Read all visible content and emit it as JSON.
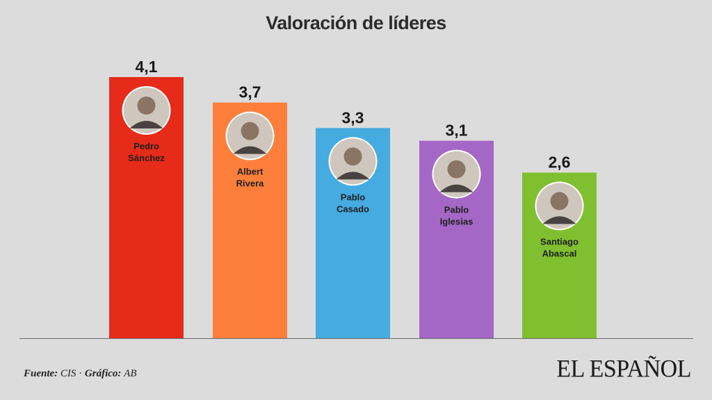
{
  "chart_data": {
    "type": "bar",
    "title": "Valoración de líderes",
    "categories": [
      "Pedro Sánchez",
      "Albert Rivera",
      "Pablo Casado",
      "Pablo Iglesias",
      "Santiago Abascal"
    ],
    "category_lines": [
      [
        "Pedro",
        "Sánchez"
      ],
      [
        "Albert",
        "Rivera"
      ],
      [
        "Pablo",
        "Casado"
      ],
      [
        "Pablo",
        "Iglesias"
      ],
      [
        "Santiago",
        "Abascal"
      ]
    ],
    "values": [
      4.1,
      3.7,
      3.3,
      3.1,
      2.6
    ],
    "value_labels": [
      "4,1",
      "3,7",
      "3,3",
      "3,1",
      "2,6"
    ],
    "colors": [
      "#e62b1a",
      "#fe7f3c",
      "#45abe0",
      "#a567c5",
      "#80c030"
    ],
    "portrait_icons": [
      "portrait-photo",
      "portrait-photo",
      "portrait-photo",
      "portrait-photo",
      "portrait-photo"
    ],
    "ylim": [
      0,
      4.1
    ],
    "grid": false,
    "legend": "none",
    "xlabel": "",
    "ylabel": ""
  },
  "footer": {
    "source_label": "Fuente:",
    "source_value": "CIS",
    "separator": "·",
    "graphic_label": "Gráfico:",
    "graphic_value": "AB"
  },
  "brand": "EL ESPAÑOL"
}
